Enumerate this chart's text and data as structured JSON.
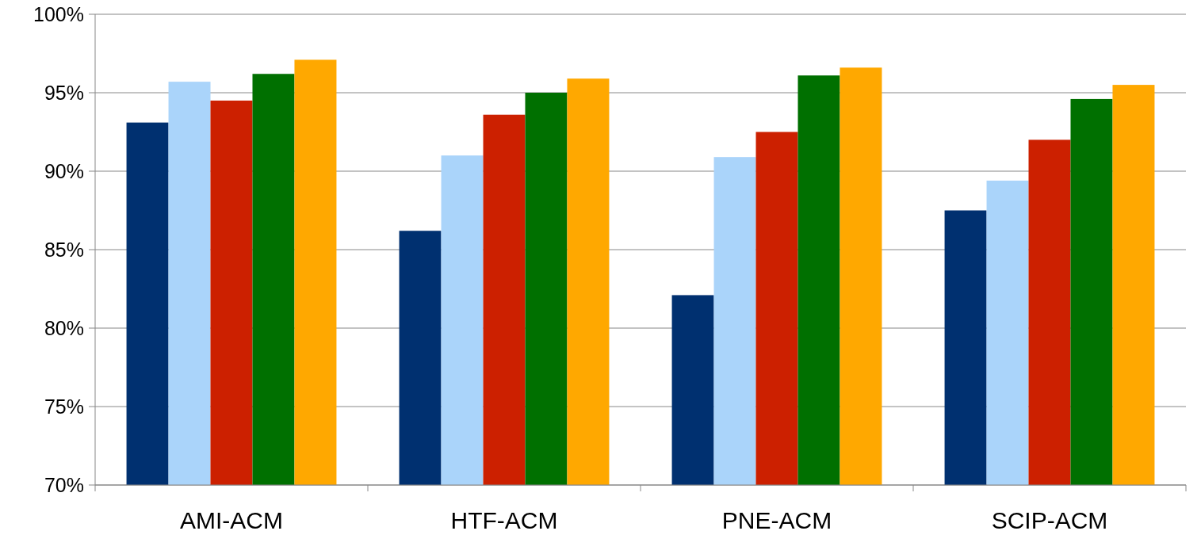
{
  "chart_data": {
    "type": "bar",
    "categories": [
      "AMI-ACM",
      "HTF-ACM",
      "PNE-ACM",
      "SCIP-ACM"
    ],
    "series": [
      {
        "color": "#003070",
        "values": [
          93.1,
          86.2,
          82.1,
          87.5
        ]
      },
      {
        "color": "#aad4fa",
        "values": [
          95.7,
          91.0,
          90.9,
          89.4
        ]
      },
      {
        "color": "#cc2000",
        "values": [
          94.5,
          93.6,
          92.5,
          92.0
        ]
      },
      {
        "color": "#007000",
        "values": [
          96.2,
          95.0,
          96.1,
          94.6
        ]
      },
      {
        "color": "#ffa800",
        "values": [
          97.1,
          95.9,
          96.6,
          95.5
        ]
      }
    ],
    "ylim": [
      70,
      100
    ],
    "yticks": [
      {
        "value": 70,
        "label": "70%"
      },
      {
        "value": 75,
        "label": "75%"
      },
      {
        "value": 80,
        "label": "80%"
      },
      {
        "value": 85,
        "label": "85%"
      },
      {
        "value": 90,
        "label": "90%"
      },
      {
        "value": 95,
        "label": "95%"
      },
      {
        "value": 100,
        "label": "100%"
      }
    ],
    "grid": "y"
  }
}
